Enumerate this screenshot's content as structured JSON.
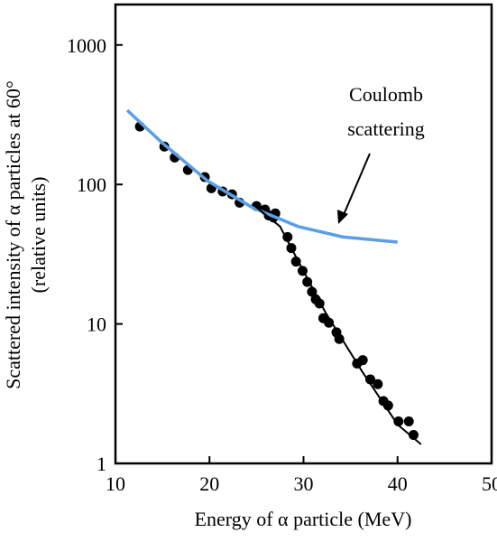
{
  "chart_data": {
    "type": "scatter",
    "xlabel": "Energy of α particle (MeV)",
    "ylabel": [
      "Scattered intensity of α particles at 60°",
      "(relative units)"
    ],
    "annotation": [
      "Coulomb",
      "scattering"
    ],
    "xlim": [
      10,
      50
    ],
    "xticks": [
      10,
      20,
      30,
      40,
      50
    ],
    "ylim": [
      1,
      1950
    ],
    "yticks": [
      1,
      10,
      100,
      1000
    ],
    "log_y": true,
    "series": [
      {
        "type": "scatter",
        "color": "#000000",
        "x": [
          12.6,
          15.2,
          16.3,
          17.7,
          19.5,
          20.2,
          21.4,
          22.4,
          23.2,
          25.0,
          25.9,
          26.3,
          26.8,
          27.0,
          28.3,
          28.7,
          29.2,
          29.9,
          30.4,
          30.9,
          31.3,
          31.7,
          32.1,
          32.7,
          33.5,
          33.8,
          35.7,
          36.3,
          37.1,
          37.9,
          38.5,
          39.0,
          40.1,
          41.2,
          41.7
        ],
        "values": [
          260,
          187,
          156,
          127,
          113,
          94,
          89,
          85,
          74,
          70,
          66,
          60,
          58,
          62,
          42,
          35,
          28,
          24,
          20,
          17,
          15,
          14,
          11,
          10.2,
          8.7,
          7.8,
          5.2,
          5.5,
          4.0,
          3.7,
          2.8,
          2.6,
          2.0,
          2.0,
          1.6
        ]
      },
      {
        "type": "line",
        "color": "#5b9ee6",
        "x": [
          11.25,
          15.0,
          19.8,
          24.6,
          29.4,
          34.2,
          40.0
        ],
        "values": [
          340,
          198,
          106,
          68,
          50,
          42,
          38.6
        ]
      },
      {
        "type": "line",
        "color": "#000000",
        "x": [
          24.6,
          27.5,
          29.4,
          32.3,
          36.2,
          40.0,
          42.5
        ],
        "values": [
          72,
          50,
          28.5,
          12.2,
          4.6,
          1.9,
          1.37
        ]
      }
    ]
  }
}
